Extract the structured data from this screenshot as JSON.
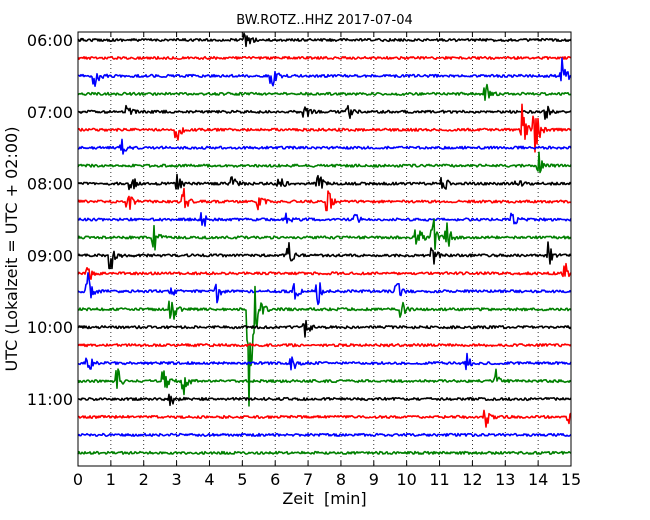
{
  "chart_data": {
    "type": "line",
    "title": "BW.ROTZ..HHZ 2017-07-04",
    "xlabel": "Zeit  [min]",
    "ylabel": "UTC (Lokalzeit = UTC + 02:00)",
    "xlim": [
      0,
      15
    ],
    "x_ticks": [
      "0",
      "1",
      "2",
      "3",
      "4",
      "5",
      "6",
      "7",
      "8",
      "9",
      "10",
      "11",
      "12",
      "13",
      "14",
      "15"
    ],
    "y_ticks": [
      "06:00",
      "07:00",
      "08:00",
      "09:00",
      "10:00",
      "11:00"
    ],
    "grid": true,
    "trace_colors": [
      "#000000",
      "#ff0000",
      "#0000ff",
      "#008000"
    ],
    "traces": [
      {
        "start": "06:00",
        "events": [
          [
            5.1,
            0.12
          ]
        ]
      },
      {
        "start": "06:15",
        "events": []
      },
      {
        "start": "06:30",
        "events": [
          [
            0.5,
            0.15
          ],
          [
            5.9,
            0.15
          ],
          [
            14.7,
            0.25
          ]
        ]
      },
      {
        "start": "06:45",
        "events": [
          [
            12.4,
            0.12
          ]
        ]
      },
      {
        "start": "07:00",
        "events": [
          [
            1.5,
            0.1
          ],
          [
            6.9,
            0.1
          ],
          [
            8.2,
            0.1
          ],
          [
            14.2,
            0.1
          ]
        ]
      },
      {
        "start": "07:15",
        "events": [
          [
            3.0,
            0.15
          ],
          [
            13.5,
            0.25
          ],
          [
            13.9,
            0.35
          ]
        ]
      },
      {
        "start": "07:30",
        "events": [
          [
            1.3,
            0.1
          ]
        ]
      },
      {
        "start": "07:45",
        "events": [
          [
            14.0,
            0.15
          ]
        ]
      },
      {
        "start": "08:00",
        "events": [
          [
            1.6,
            0.12
          ],
          [
            3.0,
            0.12
          ],
          [
            4.7,
            0.12
          ],
          [
            6.1,
            0.12
          ],
          [
            7.3,
            0.12
          ],
          [
            11.1,
            0.12
          ],
          [
            13.3,
            0.12
          ]
        ]
      },
      {
        "start": "08:15",
        "events": [
          [
            1.5,
            0.15
          ],
          [
            3.2,
            0.15
          ],
          [
            5.5,
            0.15
          ],
          [
            7.6,
            0.15
          ]
        ]
      },
      {
        "start": "08:30",
        "events": [
          [
            3.8,
            0.1
          ],
          [
            6.3,
            0.1
          ],
          [
            8.4,
            0.1
          ],
          [
            13.2,
            0.1
          ]
        ]
      },
      {
        "start": "08:45",
        "events": [
          [
            2.3,
            0.15
          ],
          [
            10.3,
            0.2
          ],
          [
            10.8,
            0.2
          ],
          [
            11.2,
            0.2
          ]
        ]
      },
      {
        "start": "09:00",
        "events": [
          [
            1.0,
            0.2
          ],
          [
            6.4,
            0.12
          ],
          [
            10.8,
            0.12
          ],
          [
            14.3,
            0.12
          ]
        ]
      },
      {
        "start": "09:15",
        "events": [
          [
            0.3,
            0.12
          ],
          [
            14.8,
            0.12
          ]
        ]
      },
      {
        "start": "09:30",
        "events": [
          [
            0.3,
            0.15
          ],
          [
            2.8,
            0.12
          ],
          [
            4.2,
            0.12
          ],
          [
            6.6,
            0.12
          ],
          [
            7.3,
            0.12
          ],
          [
            9.7,
            0.12
          ]
        ]
      },
      {
        "start": "09:45",
        "events": [
          [
            2.8,
            0.3
          ],
          [
            5.2,
            1.0
          ],
          [
            9.8,
            0.12
          ]
        ]
      },
      {
        "start": "10:00",
        "events": [
          [
            6.9,
            0.12
          ]
        ]
      },
      {
        "start": "10:15",
        "events": []
      },
      {
        "start": "10:30",
        "events": [
          [
            0.3,
            0.12
          ],
          [
            6.5,
            0.12
          ],
          [
            11.8,
            0.12
          ]
        ]
      },
      {
        "start": "10:45",
        "events": [
          [
            1.2,
            0.15
          ],
          [
            2.6,
            0.15
          ],
          [
            3.2,
            0.15
          ],
          [
            12.7,
            0.12
          ]
        ]
      },
      {
        "start": "11:00",
        "events": [
          [
            2.8,
            0.1
          ]
        ]
      },
      {
        "start": "11:15",
        "events": [
          [
            12.4,
            0.1
          ],
          [
            14.9,
            0.12
          ]
        ]
      },
      {
        "start": "11:30",
        "events": []
      },
      {
        "start": "11:45",
        "events": []
      }
    ]
  }
}
